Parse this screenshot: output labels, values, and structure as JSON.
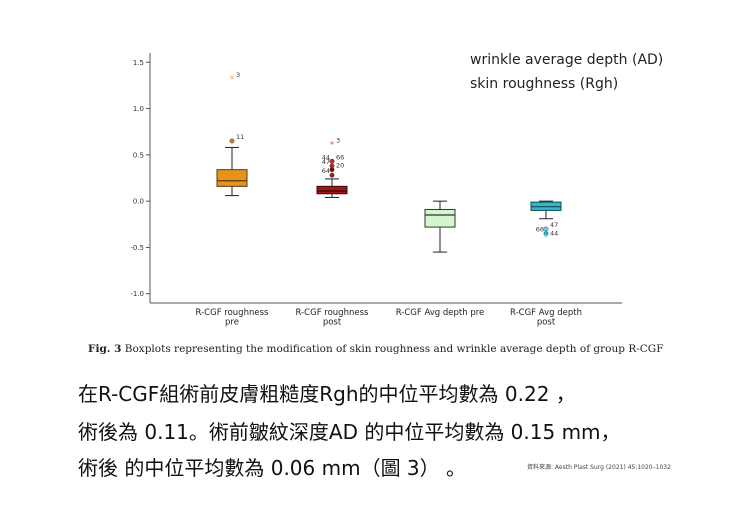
{
  "legend": {
    "line1": "wrinkle average depth (AD)",
    "line2": "skin roughness (Rgh)"
  },
  "caption": {
    "label": "Fig. 3",
    "text": "Boxplots representing the modification of skin roughness and wrinkle average depth of group R-CGF"
  },
  "summary": {
    "line1": "在R-CGF組術前皮膚粗糙度Rgh的中位平均數為 0.22 ，",
    "line2": "術後為 0.11。術前皺紋深度AD 的中位平均數為 0.15 mm，",
    "line3": "術後 的中位平均數為 0.06 mm（圖 3） 。"
  },
  "source": "資料來源: Aesth Plast Surg (2021) 45:1020–1032",
  "chart_data": {
    "type": "box",
    "title": "",
    "xlabel": "",
    "ylabel": "",
    "ylim": [
      -1.1,
      1.6
    ],
    "yticks": [
      -1.0,
      -0.5,
      0.0,
      0.5,
      1.0,
      1.5
    ],
    "ytick_labels": [
      "-1.0",
      "-0.5",
      "0.0",
      "0.5",
      "1.0",
      "1.5"
    ],
    "grid": false,
    "categories": [
      [
        "R-CGF roughness",
        "pre"
      ],
      [
        "R-CGF roughness",
        "post"
      ],
      [
        "R-CGF Avg depth pre"
      ],
      [
        "R-CGF Avg depth",
        "post"
      ]
    ],
    "boxes": [
      {
        "whisker_low": 0.06,
        "q1": 0.16,
        "median": 0.22,
        "q3": 0.34,
        "whisker_high": 0.58,
        "fill": "#e8921e",
        "stroke": "#5a3a10",
        "outliers": [
          {
            "y": 1.32,
            "label": "3",
            "marker": "star",
            "color": "#f0a060"
          },
          {
            "y": 0.65,
            "label": "11",
            "marker": "circle",
            "color": "#d2781e"
          }
        ]
      },
      {
        "whisker_low": 0.04,
        "q1": 0.08,
        "median": 0.11,
        "q3": 0.16,
        "whisker_high": 0.24,
        "fill": "#a01818",
        "stroke": "#3a0808",
        "outliers": [
          {
            "y": 0.61,
            "label": "3",
            "marker": "star",
            "color": "#e06070"
          },
          {
            "y": 0.43,
            "label": "44",
            "marker": "circle",
            "color": "#c03030"
          },
          {
            "y": 0.43,
            "label": "66",
            "marker": "circle",
            "color": "#c03030"
          },
          {
            "y": 0.38,
            "label": "47",
            "marker": "circle",
            "color": "#b02828"
          },
          {
            "y": 0.34,
            "label": "20",
            "marker": "circle",
            "color": "#701010"
          },
          {
            "y": 0.28,
            "label": "64",
            "marker": "circle",
            "color": "#902020"
          }
        ]
      },
      {
        "whisker_low": -0.55,
        "q1": -0.28,
        "median": -0.15,
        "q3": -0.09,
        "whisker_high": 0.0,
        "fill": "#d4f6cc",
        "stroke": "#333333",
        "outliers": []
      },
      {
        "whisker_low": -0.19,
        "q1": -0.1,
        "median": -0.06,
        "q3": -0.01,
        "whisker_high": 0.0,
        "fill": "#33b7c9",
        "stroke": "#0d4a55",
        "outliers": [
          {
            "y": -0.3,
            "label": "47",
            "marker": "circle",
            "color": "#66d0e0"
          },
          {
            "y": -0.35,
            "label": "66",
            "marker": "circle",
            "color": "#2ab0c8"
          },
          {
            "y": -0.39,
            "label": "44",
            "marker": "star",
            "color": "#66d0e0"
          }
        ]
      }
    ]
  }
}
